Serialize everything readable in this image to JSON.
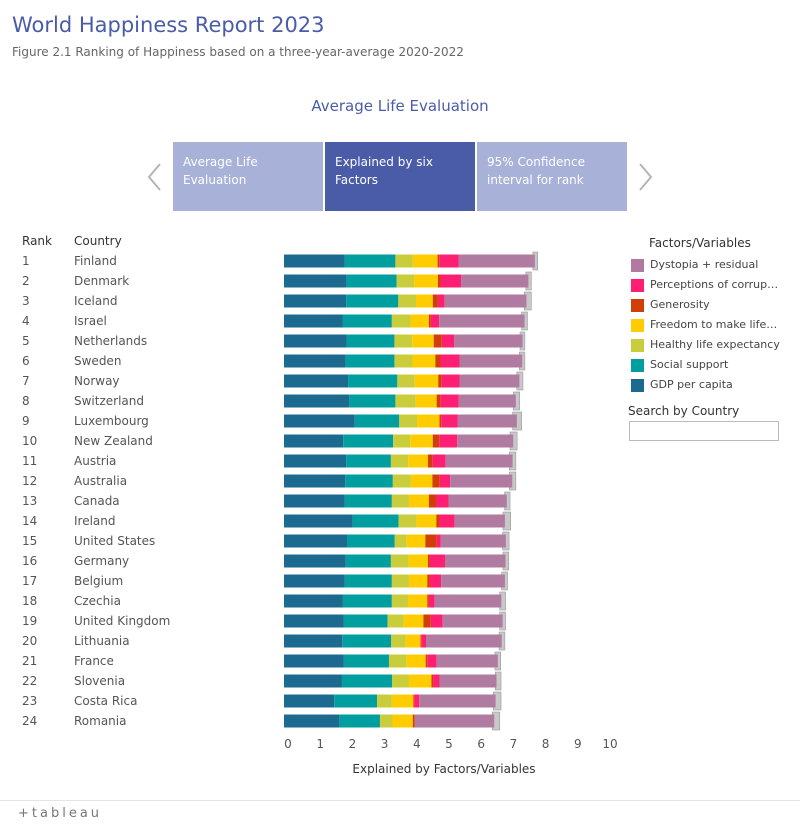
{
  "header": {
    "title": "World Happiness Report 2023",
    "subtitle": "Figure 2.1 Ranking of Happiness based on a three-year-average 2020-2022"
  },
  "section_title": "Average Life Evaluation",
  "tabs": [
    {
      "label": "Average Life Evaluation",
      "active": false
    },
    {
      "label": "Explained by six Factors",
      "active": true
    },
    {
      "label": "95% Confidence interval for rank",
      "active": false
    }
  ],
  "columns": {
    "rank": "Rank",
    "country": "Country"
  },
  "legend": {
    "title": "Factors/Variables",
    "items": [
      {
        "label": "Dystopia + residual",
        "color": "#b07aa1"
      },
      {
        "label": "Perceptions of corruption",
        "color": "#ff1f72"
      },
      {
        "label": "Generosity",
        "color": "#d13f09"
      },
      {
        "label": "Freedom to make life choices",
        "color": "#ffcc00"
      },
      {
        "label": "Healthy life expectancy",
        "color": "#c9cc3b"
      },
      {
        "label": "Social support",
        "color": "#009e9e"
      },
      {
        "label": "GDP per capita",
        "color": "#1c6a8f"
      }
    ]
  },
  "search": {
    "label": "Search by Country",
    "placeholder": ""
  },
  "footer": {
    "logo": "+tableau"
  },
  "chart_data": {
    "type": "bar",
    "orientation": "horizontal-stacked",
    "xlabel": "Explained by Factors/Variables",
    "xlim": [
      0,
      10
    ],
    "x_ticks": [
      0,
      1,
      2,
      3,
      4,
      5,
      6,
      7,
      8,
      9,
      10
    ],
    "series_order": [
      "GDP per capita",
      "Social support",
      "Healthy life expectancy",
      "Freedom to make life choices",
      "Generosity",
      "Perceptions of corruption",
      "Dystopia + residual"
    ],
    "rows": [
      {
        "rank": "1",
        "country": "Finland",
        "values": [
          1.89,
          1.57,
          0.54,
          0.77,
          0.05,
          0.61,
          2.36
        ],
        "ci": [
          7.73,
          7.88
        ]
      },
      {
        "rank": "2",
        "country": "Denmark",
        "values": [
          1.95,
          1.55,
          0.54,
          0.74,
          0.08,
          0.64,
          2.09
        ],
        "ci": [
          7.51,
          7.68
        ]
      },
      {
        "rank": "3",
        "country": "Iceland",
        "values": [
          1.93,
          1.62,
          0.55,
          0.52,
          0.16,
          0.21,
          2.54
        ],
        "ci": [
          7.46,
          7.68
        ]
      },
      {
        "rank": "4",
        "country": "Israel",
        "values": [
          1.83,
          1.52,
          0.58,
          0.57,
          0.06,
          0.26,
          2.65
        ],
        "ci": [
          7.38,
          7.56
        ]
      },
      {
        "rank": "5",
        "country": "Netherlands",
        "values": [
          1.94,
          1.49,
          0.55,
          0.67,
          0.25,
          0.39,
          2.12
        ],
        "ci": [
          7.33,
          7.48
        ]
      },
      {
        "rank": "6",
        "country": "Sweden",
        "values": [
          1.92,
          1.51,
          0.56,
          0.71,
          0.16,
          0.59,
          1.95
        ],
        "ci": [
          7.31,
          7.48
        ]
      },
      {
        "rank": "7",
        "country": "Norway",
        "values": [
          1.99,
          1.53,
          0.54,
          0.73,
          0.11,
          0.55,
          1.86
        ],
        "ci": [
          7.23,
          7.42
        ]
      },
      {
        "rank": "8",
        "country": "Switzerland",
        "values": [
          2.03,
          1.43,
          0.63,
          0.65,
          0.13,
          0.56,
          1.77
        ],
        "ci": [
          7.12,
          7.32
        ]
      },
      {
        "rank": "9",
        "country": "Luxembourg",
        "values": [
          2.2,
          1.38,
          0.55,
          0.7,
          0.05,
          0.52,
          1.83
        ],
        "ci": [
          7.1,
          7.38
        ]
      },
      {
        "rank": "10",
        "country": "New Zealand",
        "values": [
          1.84,
          1.55,
          0.53,
          0.7,
          0.2,
          0.56,
          1.74
        ],
        "ci": [
          7.02,
          7.24
        ]
      },
      {
        "rank": "11",
        "country": "Austria",
        "values": [
          1.93,
          1.39,
          0.54,
          0.61,
          0.15,
          0.4,
          2.08
        ],
        "ci": [
          7.0,
          7.2
        ]
      },
      {
        "rank": "12",
        "country": "Australia",
        "values": [
          1.9,
          1.48,
          0.56,
          0.67,
          0.23,
          0.32,
          1.93
        ],
        "ci": [
          7.0,
          7.2
        ]
      },
      {
        "rank": "13",
        "country": "Canada",
        "values": [
          1.89,
          1.46,
          0.53,
          0.62,
          0.22,
          0.39,
          1.81
        ],
        "ci": [
          6.85,
          7.02
        ]
      },
      {
        "rank": "14",
        "country": "Ireland",
        "values": [
          2.13,
          1.43,
          0.56,
          0.61,
          0.1,
          0.47,
          1.56
        ],
        "ci": [
          6.8,
          7.04
        ]
      },
      {
        "rank": "15",
        "country": "United States",
        "values": [
          1.97,
          1.47,
          0.37,
          0.58,
          0.35,
          0.13,
          2.02
        ],
        "ci": [
          6.79,
          6.99
        ]
      },
      {
        "rank": "16",
        "country": "Germany",
        "values": [
          1.92,
          1.4,
          0.55,
          0.6,
          0.05,
          0.48,
          1.88
        ],
        "ci": [
          6.8,
          6.98
        ]
      },
      {
        "rank": "17",
        "country": "Belgium",
        "values": [
          1.89,
          1.46,
          0.53,
          0.57,
          0.07,
          0.36,
          1.98
        ],
        "ci": [
          6.76,
          6.94
        ]
      },
      {
        "rank": "18",
        "country": "Czechia",
        "values": [
          1.83,
          1.52,
          0.5,
          0.6,
          0.05,
          0.18,
          2.07
        ],
        "ci": [
          6.7,
          6.88
        ]
      },
      {
        "rank": "19",
        "country": "United Kingdom",
        "values": [
          1.86,
          1.36,
          0.5,
          0.61,
          0.23,
          0.37,
          1.86
        ],
        "ci": [
          6.7,
          6.88
        ]
      },
      {
        "rank": "20",
        "country": "Lithuania",
        "values": [
          1.81,
          1.52,
          0.45,
          0.46,
          0.02,
          0.15,
          2.35
        ],
        "ci": [
          6.68,
          6.86
        ]
      },
      {
        "rank": "21",
        "country": "France",
        "values": [
          1.86,
          1.4,
          0.55,
          0.59,
          0.05,
          0.29,
          1.9
        ],
        "ci": [
          6.55,
          6.73
        ]
      },
      {
        "rank": "22",
        "country": "Slovenia",
        "values": [
          1.8,
          1.56,
          0.52,
          0.7,
          0.05,
          0.2,
          1.77
        ],
        "ci": [
          6.56,
          6.74
        ]
      },
      {
        "rank": "23",
        "country": "Costa Rica",
        "values": [
          1.56,
          1.33,
          0.46,
          0.67,
          0.02,
          0.16,
          2.37
        ],
        "ci": [
          6.5,
          6.74
        ]
      },
      {
        "rank": "24",
        "country": "Romania",
        "values": [
          1.72,
          1.26,
          0.39,
          0.63,
          0.06,
          0.0,
          2.47
        ],
        "ci": [
          6.47,
          6.7
        ]
      }
    ]
  }
}
